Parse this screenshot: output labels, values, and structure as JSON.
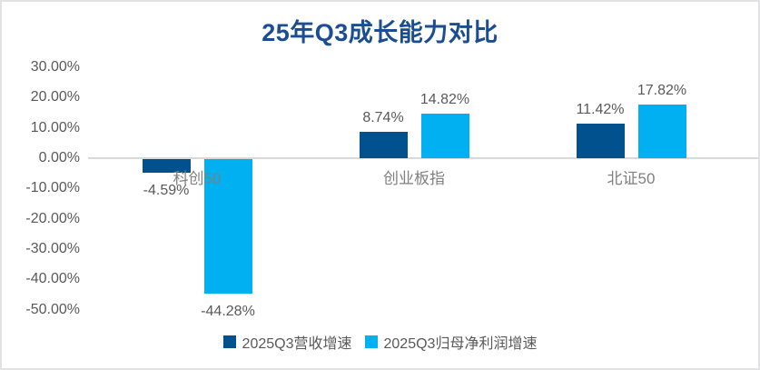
{
  "chart_data": {
    "type": "bar",
    "title": "25年Q3成长能力对比",
    "categories": [
      "科创50",
      "创业板指",
      "北证50"
    ],
    "series": [
      {
        "name": "2025Q3营收增速",
        "color": "#02518f",
        "values": [
          -4.59,
          8.74,
          11.42
        ],
        "labels": [
          "-4.59%",
          "8.74%",
          "11.42%"
        ]
      },
      {
        "name": "2025Q3归母净利润增速",
        "color": "#00b0f0",
        "values": [
          -44.28,
          14.82,
          17.82
        ],
        "labels": [
          "-44.28%",
          "14.82%",
          "17.82%"
        ]
      }
    ],
    "y_axis": {
      "min": -50,
      "max": 30,
      "step": 10,
      "tick_labels": [
        "30.00%",
        "20.00%",
        "10.00%",
        "0.00%",
        "-10.00%",
        "-20.00%",
        "-30.00%",
        "-40.00%",
        "-50.00%"
      ]
    },
    "grid": false,
    "legend_position": "bottom",
    "colors": {
      "title": "#1b4e91",
      "axis_text": "#595959",
      "category_text": "#7f7f7f",
      "data_label_text": "#595959",
      "zero_line": "#d9d9d9",
      "frame_border": "#e2e2e5",
      "background": "#ffffff"
    }
  }
}
